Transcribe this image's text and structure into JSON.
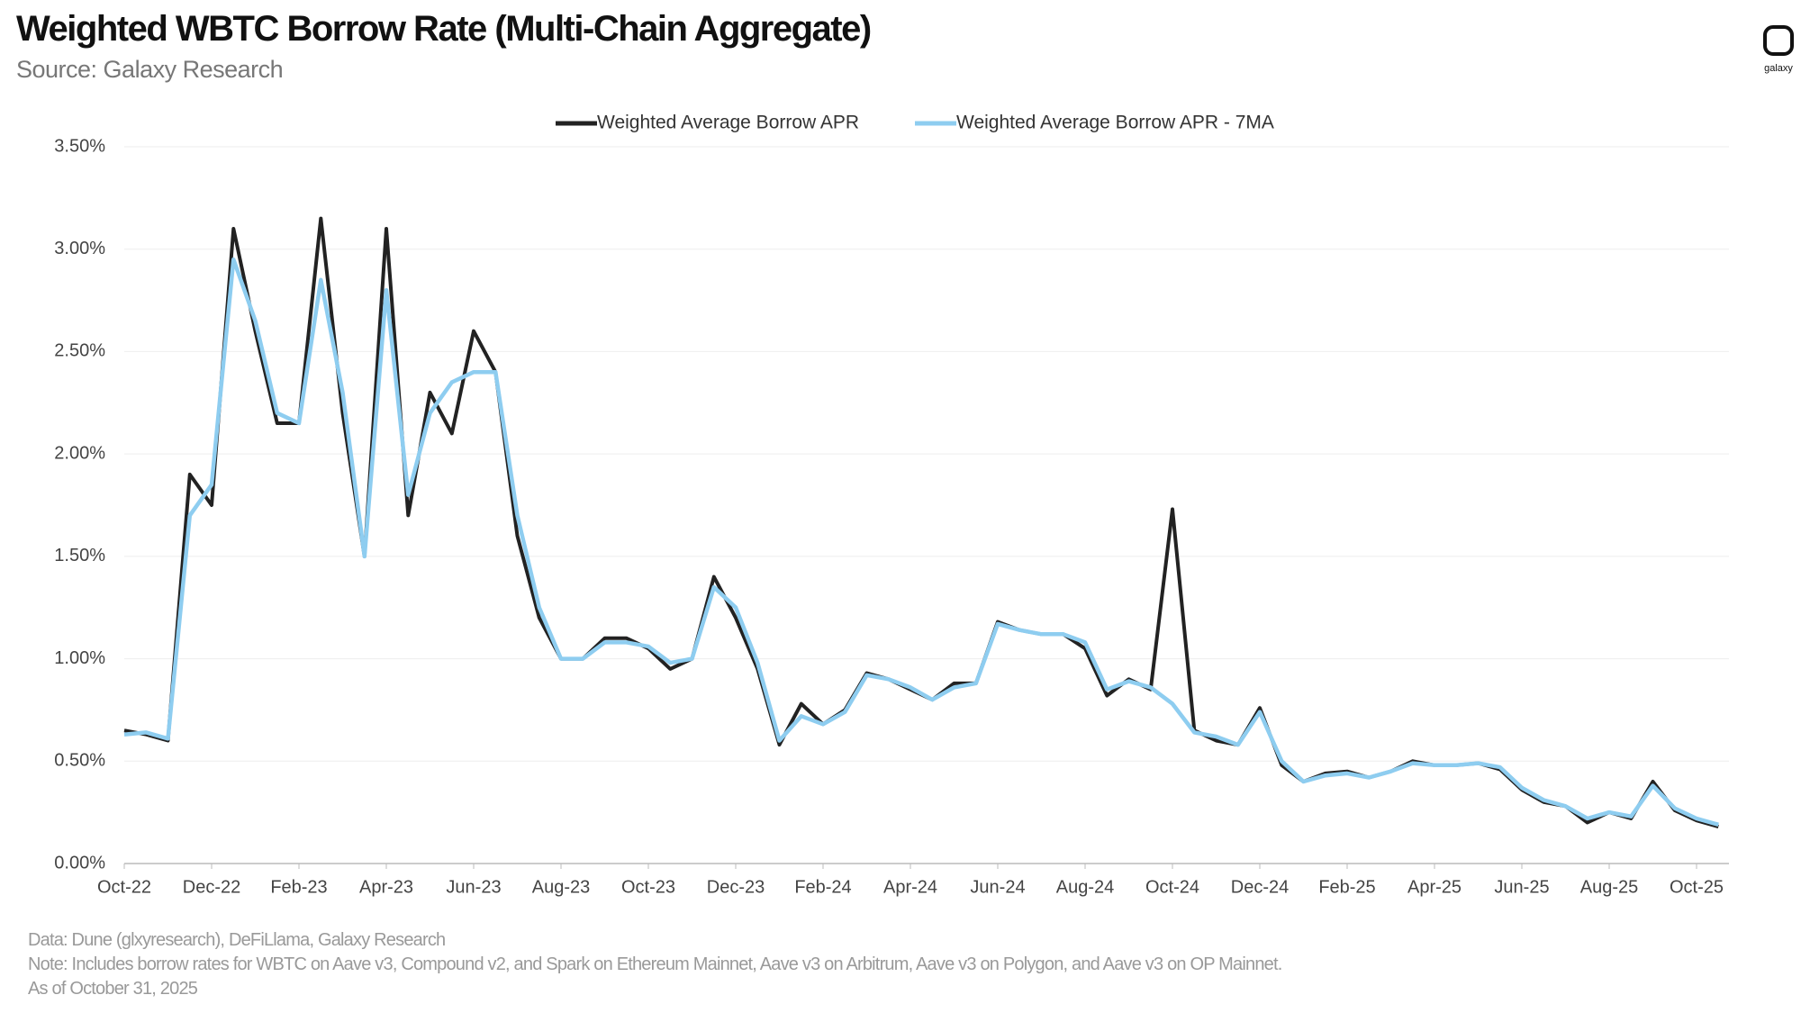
{
  "title": "Weighted WBTC Borrow Rate (Multi-Chain Aggregate)",
  "subtitle": "Source: Galaxy Research",
  "logo": "galaxy",
  "footer": [
    "Data: Dune (glxyresearch), DeFiLlama, Galaxy Research",
    "Note: Includes borrow rates for WBTC on Aave v3, Compound v2, and Spark on Ethereum Mainnet, Aave v3 on Arbitrum, Aave v3 on Polygon, and Aave v3 on OP Mainnet.",
    "As of October 31, 2025"
  ],
  "chart_data": {
    "type": "line",
    "categories": [
      "Oct-22",
      null,
      null,
      null,
      "Dec-22",
      null,
      null,
      null,
      "Feb-23",
      null,
      null,
      null,
      "Apr-23",
      null,
      null,
      null,
      "Jun-23",
      null,
      null,
      null,
      "Aug-23",
      null,
      null,
      null,
      "Oct-23",
      null,
      null,
      null,
      "Dec-23",
      null,
      null,
      null,
      "Feb-24",
      null,
      null,
      null,
      "Apr-24",
      null,
      null,
      null,
      "Jun-24",
      null,
      null,
      null,
      "Aug-24",
      null,
      null,
      null,
      "Oct-24",
      null,
      null,
      null,
      "Dec-24",
      null,
      null,
      null,
      "Feb-25",
      null,
      null,
      null,
      "Apr-25",
      null,
      null,
      null,
      "Jun-25",
      null,
      null,
      null,
      "Aug-25",
      null,
      null,
      null,
      "Oct-25",
      null
    ],
    "series": [
      {
        "name": "Weighted Average Borrow APR",
        "color": "#222222",
        "values": [
          0.65,
          0.63,
          0.6,
          1.9,
          1.75,
          3.1,
          2.6,
          2.15,
          2.15,
          3.15,
          2.2,
          1.5,
          3.1,
          1.7,
          2.3,
          2.1,
          2.6,
          2.4,
          1.6,
          1.2,
          1.0,
          1.0,
          1.1,
          1.1,
          1.05,
          0.95,
          1.0,
          1.4,
          1.2,
          0.95,
          0.58,
          0.78,
          0.68,
          0.75,
          0.93,
          0.9,
          0.85,
          0.8,
          0.88,
          0.88,
          1.18,
          1.14,
          1.12,
          1.12,
          1.05,
          0.82,
          0.9,
          0.85,
          1.73,
          0.65,
          0.6,
          0.58,
          0.76,
          0.48,
          0.4,
          0.44,
          0.45,
          0.42,
          0.45,
          0.5,
          0.48,
          0.48,
          0.49,
          0.46,
          0.36,
          0.3,
          0.28,
          0.2,
          0.25,
          0.22,
          0.4,
          0.26,
          0.21,
          0.18
        ]
      },
      {
        "name": "Weighted Average Borrow APR - 7MA",
        "color": "#8ecdf0",
        "values": [
          0.63,
          0.64,
          0.61,
          1.7,
          1.85,
          2.95,
          2.65,
          2.2,
          2.15,
          2.85,
          2.3,
          1.5,
          2.8,
          1.8,
          2.2,
          2.35,
          2.4,
          2.4,
          1.7,
          1.25,
          1.0,
          1.0,
          1.08,
          1.08,
          1.06,
          0.98,
          1.0,
          1.35,
          1.25,
          0.98,
          0.6,
          0.72,
          0.68,
          0.74,
          0.92,
          0.9,
          0.86,
          0.8,
          0.86,
          0.88,
          1.17,
          1.14,
          1.12,
          1.12,
          1.08,
          0.85,
          0.89,
          0.86,
          0.78,
          0.64,
          0.62,
          0.58,
          0.74,
          0.5,
          0.4,
          0.43,
          0.44,
          0.42,
          0.45,
          0.49,
          0.48,
          0.48,
          0.49,
          0.47,
          0.37,
          0.31,
          0.28,
          0.22,
          0.25,
          0.23,
          0.38,
          0.27,
          0.22,
          0.19
        ]
      }
    ],
    "ylim": [
      0,
      3.5
    ],
    "yticks": [
      {
        "value": 0,
        "label": "0.00%"
      },
      {
        "value": 0.5,
        "label": "0.50%"
      },
      {
        "value": 1,
        "label": "1.00%"
      },
      {
        "value": 1.5,
        "label": "1.50%"
      },
      {
        "value": 2,
        "label": "2.00%"
      },
      {
        "value": 2.5,
        "label": "2.50%"
      },
      {
        "value": 3,
        "label": "3.00%"
      },
      {
        "value": 3.5,
        "label": "3.50%"
      }
    ],
    "grid": true,
    "legend": "top"
  }
}
